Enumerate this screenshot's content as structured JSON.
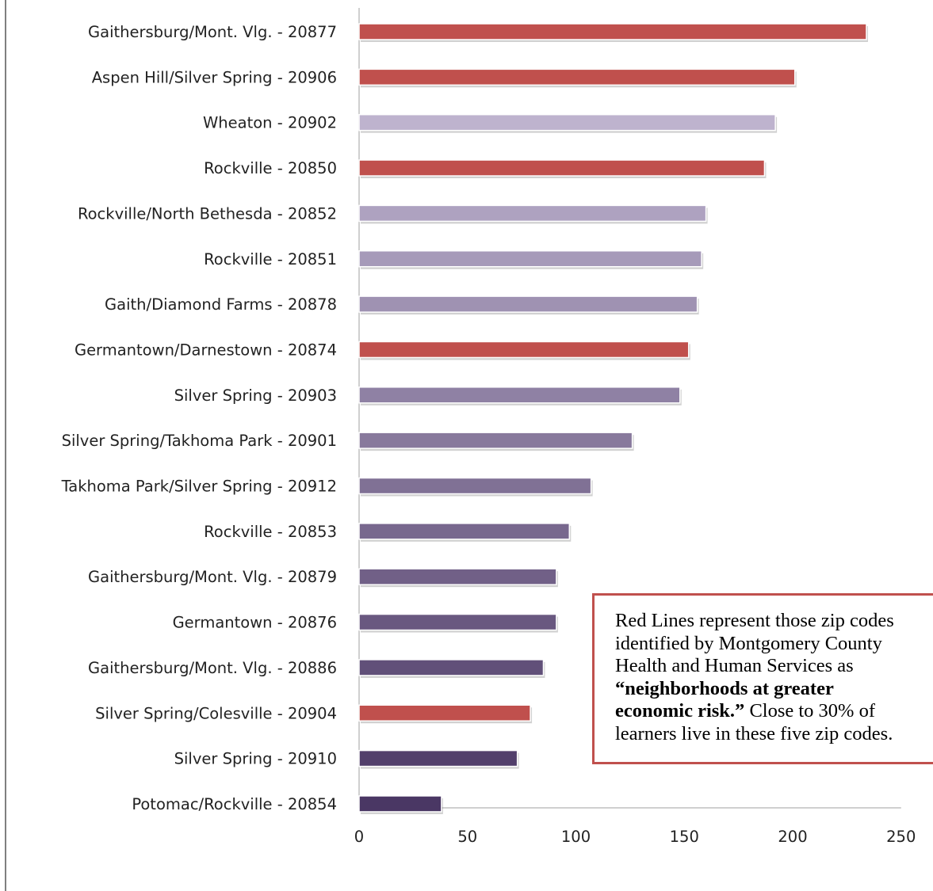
{
  "colors": {
    "highlight": "#c0504d",
    "gradient_light": "#cdc3dc",
    "gradient_dark": "#4a3764",
    "axis": "#bfbfbf",
    "border": "#7f7f7f"
  },
  "chart_data": {
    "type": "bar",
    "orientation": "horizontal",
    "title": "",
    "xlabel": "",
    "ylabel": "",
    "xlim": [
      0,
      250
    ],
    "x_ticks": [
      "0",
      "50",
      "100",
      "150",
      "200",
      "250"
    ],
    "grid": false,
    "categories": [
      "Gaithersburg/Mont. Vlg. - 20877",
      "Aspen Hill/Silver Spring - 20906",
      "Wheaton - 20902",
      "Rockville - 20850",
      "Rockville/North Bethesda - 20852",
      "Rockville - 20851",
      "Gaith/Diamond Farms - 20878",
      "Germantown/Darnestown - 20874",
      "Silver Spring -  20903",
      "Silver Spring/Takhoma Park -  20901",
      "Takhoma Park/Silver Spring -  20912",
      "Rockville - 20853",
      "Gaithersburg/Mont. Vlg. -  20879",
      "Germantown - 20876",
      "Gaithersburg/Mont. Vlg. - 20886",
      "Silver Spring/Colesville - 20904",
      "Silver Spring - 20910",
      "Potomac/Rockville - 20854"
    ],
    "values": [
      234,
      201,
      192,
      187,
      160,
      158,
      156,
      152,
      148,
      126,
      107,
      97,
      91,
      91,
      85,
      79,
      73,
      38
    ],
    "highlighted": [
      true,
      true,
      false,
      true,
      false,
      false,
      false,
      true,
      false,
      false,
      false,
      false,
      false,
      false,
      false,
      true,
      false,
      false
    ]
  },
  "annotation": {
    "line1": "Red Lines represent those zip codes",
    "line2": "identified by Montgomery County",
    "line3": "Health and Human Services as",
    "line4_bold": "“neighborhoods at greater",
    "line5_bold": "economic risk.”",
    "line5_rest": " Close to 30% of",
    "line6": "learners live in these five zip codes."
  }
}
